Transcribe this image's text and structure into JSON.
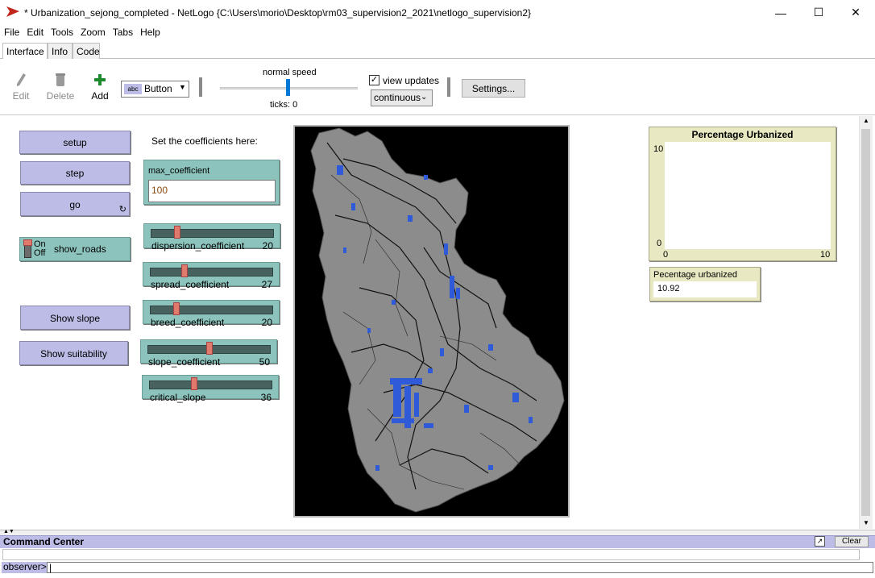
{
  "window": {
    "title": "* Urbanization_sejong_completed - NetLogo {C:\\Users\\morio\\Desktop\\rm03_supervision2_2021\\netlogo_supervision2}",
    "minimize": "—",
    "maximize": "☐",
    "close": "✕"
  },
  "menu": [
    "File",
    "Edit",
    "Tools",
    "Zoom",
    "Tabs",
    "Help"
  ],
  "tabs": [
    "Interface",
    "Info",
    "Code"
  ],
  "toolbar": {
    "edit": "Edit",
    "delete": "Delete",
    "add": "Add",
    "widget_type": "Button",
    "speed_label": "normal speed",
    "ticks": "ticks: 0",
    "view_updates": "view updates",
    "update_mode": "continuous",
    "settings": "Settings..."
  },
  "buttons": {
    "setup": "setup",
    "step": "step",
    "go": "go",
    "show_slope": "Show slope",
    "show_suitability": "Show suitability"
  },
  "switch": {
    "name": "show_roads",
    "on": "On",
    "off": "Off"
  },
  "note": "Set the coefficients here:",
  "input": {
    "label": "max_coefficient",
    "value": "100"
  },
  "sliders": [
    {
      "name": "dispersion_coefficient",
      "value": "20",
      "fraction": 0.2
    },
    {
      "name": "spread_coefficient",
      "value": "27",
      "fraction": 0.27
    },
    {
      "name": "breed_coefficient",
      "value": "20",
      "fraction": 0.2
    },
    {
      "name": "slope_coefficient",
      "value": "50",
      "fraction": 0.5
    },
    {
      "name": "critical_slope",
      "value": "36",
      "fraction": 0.36
    }
  ],
  "plot": {
    "title": "Percentage Urbanized",
    "y_max": "10",
    "y_min": "0",
    "x_min": "0",
    "x_max": "10"
  },
  "monitor": {
    "label": "Pecentage urbanized",
    "value": "10.92"
  },
  "command_center": {
    "title": "Command Center",
    "clear": "Clear",
    "prompt": "observer>",
    "input": ""
  },
  "colors": {
    "button": "#bcbce6",
    "widget_green": "#8cc4bd",
    "plot_bg": "#e8e8c2",
    "map_land": "#8c8c8c",
    "map_urban": "#2f5bd8"
  }
}
